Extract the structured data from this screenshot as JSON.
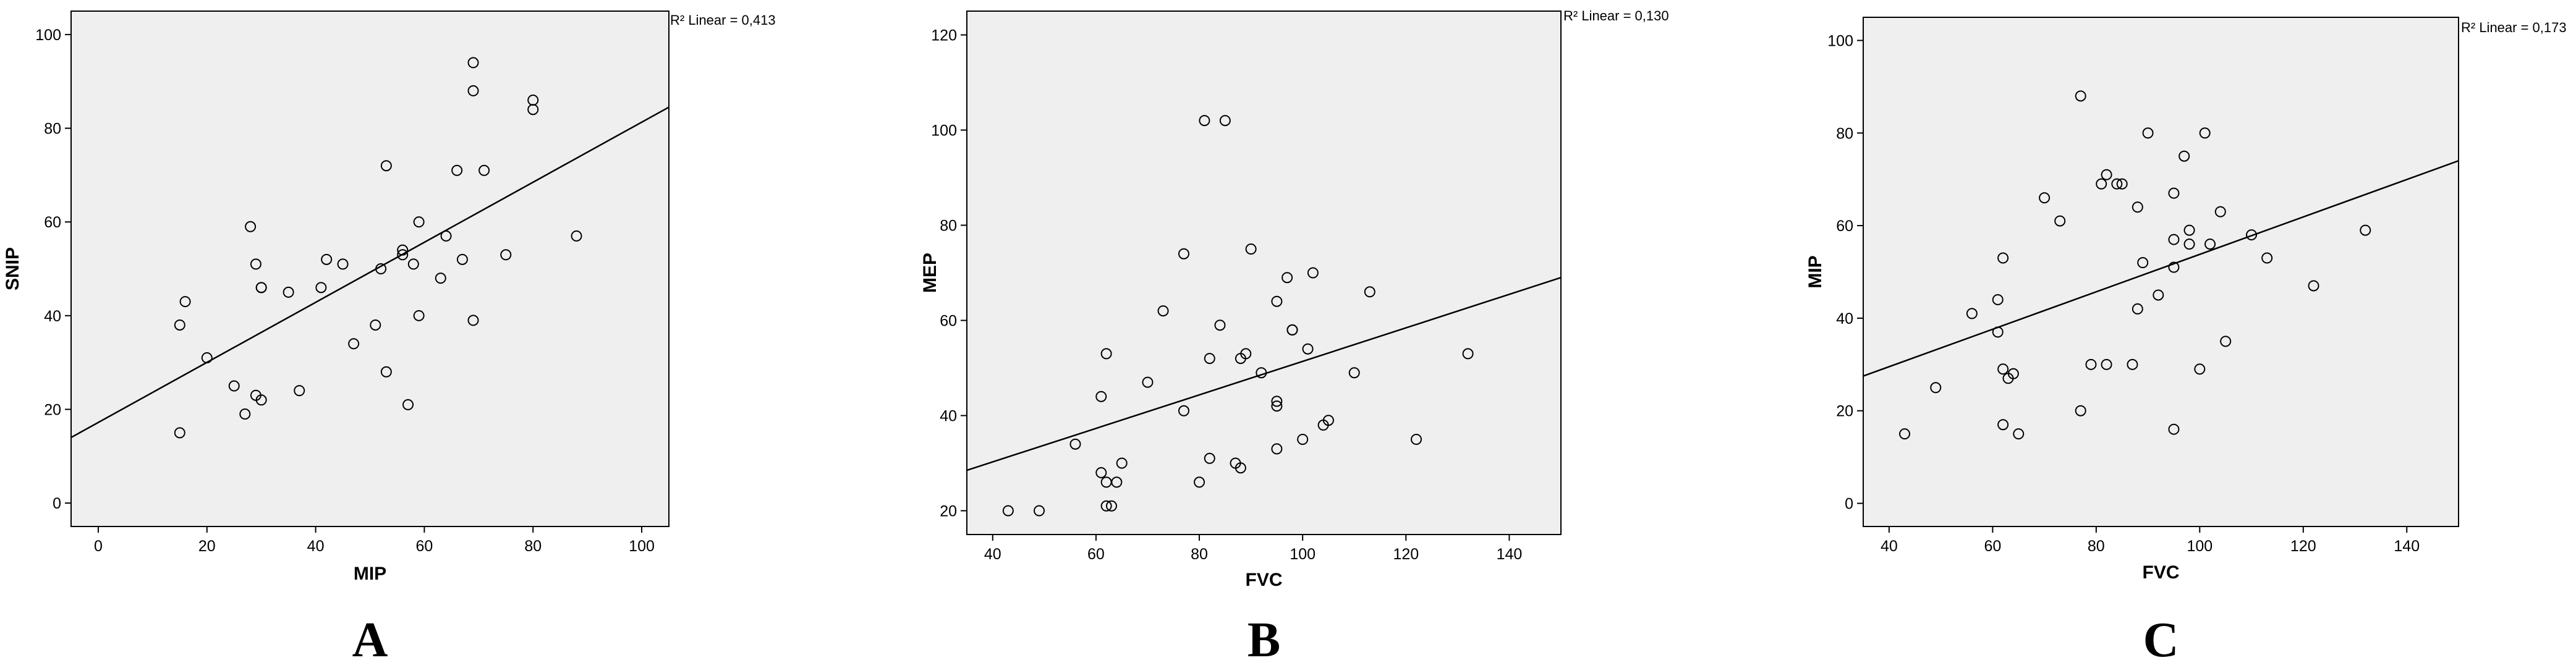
{
  "chart_data": [
    {
      "type": "scatter",
      "panel_label": "A",
      "xlabel": "MIP",
      "ylabel": "SNIP",
      "xlim": [
        -5,
        105
      ],
      "ylim": [
        -5,
        105
      ],
      "xticks": [
        0,
        20,
        40,
        60,
        80,
        100
      ],
      "yticks": [
        0,
        20,
        40,
        60,
        80,
        100
      ],
      "grid": false,
      "fit_line": {
        "type": "linear",
        "r2": 0.413,
        "label": "R² Linear = 0,413",
        "y_at_xmin": 14,
        "y_at_xmax": 84.5
      },
      "points": [
        [
          15,
          15
        ],
        [
          15,
          38
        ],
        [
          16,
          43
        ],
        [
          20,
          31
        ],
        [
          25,
          25
        ],
        [
          27,
          19
        ],
        [
          28,
          59
        ],
        [
          29,
          51
        ],
        [
          29,
          23
        ],
        [
          30,
          22
        ],
        [
          30,
          46
        ],
        [
          30,
          46
        ],
        [
          35,
          45
        ],
        [
          37,
          24
        ],
        [
          41,
          46
        ],
        [
          42,
          52
        ],
        [
          45,
          51
        ],
        [
          47,
          34
        ],
        [
          51,
          38
        ],
        [
          52,
          50
        ],
        [
          53,
          72
        ],
        [
          53,
          28
        ],
        [
          56,
          54
        ],
        [
          56,
          53
        ],
        [
          57,
          21
        ],
        [
          58,
          51
        ],
        [
          59,
          60
        ],
        [
          59,
          40
        ],
        [
          63,
          48
        ],
        [
          64,
          57
        ],
        [
          66,
          71
        ],
        [
          67,
          52
        ],
        [
          69,
          94
        ],
        [
          69,
          88
        ],
        [
          69,
          39
        ],
        [
          71,
          71
        ],
        [
          75,
          53
        ],
        [
          80,
          86
        ],
        [
          80,
          84
        ],
        [
          88,
          57
        ]
      ]
    },
    {
      "type": "scatter",
      "panel_label": "B",
      "xlabel": "FVC",
      "ylabel": "MEP",
      "xlim": [
        35,
        150
      ],
      "ylim": [
        15,
        125
      ],
      "xticks": [
        40,
        60,
        80,
        100,
        120,
        140
      ],
      "yticks": [
        20,
        40,
        60,
        80,
        100,
        120
      ],
      "grid": false,
      "fit_line": {
        "type": "linear",
        "r2": 0.13,
        "label": "R² Linear = 0,130",
        "y_at_xmin": 28.5,
        "y_at_xmax": 69
      },
      "points": [
        [
          43,
          20
        ],
        [
          49,
          20
        ],
        [
          56,
          34
        ],
        [
          61,
          28
        ],
        [
          61,
          44
        ],
        [
          62,
          26
        ],
        [
          62,
          21
        ],
        [
          62,
          53
        ],
        [
          63,
          21
        ],
        [
          64,
          26
        ],
        [
          65,
          30
        ],
        [
          70,
          47
        ],
        [
          73,
          62
        ],
        [
          77,
          41
        ],
        [
          77,
          74
        ],
        [
          80,
          26
        ],
        [
          81,
          102
        ],
        [
          82,
          31
        ],
        [
          82,
          52
        ],
        [
          84,
          59
        ],
        [
          85,
          102
        ],
        [
          87,
          30
        ],
        [
          88,
          29
        ],
        [
          88,
          52
        ],
        [
          89,
          53
        ],
        [
          90,
          75
        ],
        [
          92,
          49
        ],
        [
          95,
          64
        ],
        [
          95,
          33
        ],
        [
          95,
          43
        ],
        [
          95,
          42
        ],
        [
          97,
          69
        ],
        [
          98,
          58
        ],
        [
          98,
          58
        ],
        [
          100,
          35
        ],
        [
          101,
          54
        ],
        [
          102,
          70
        ],
        [
          104,
          38
        ],
        [
          105,
          39
        ],
        [
          110,
          49
        ],
        [
          113,
          66
        ],
        [
          122,
          35
        ],
        [
          132,
          53
        ]
      ]
    },
    {
      "type": "scatter",
      "panel_label": "C",
      "xlabel": "FVC",
      "ylabel": "MIP",
      "xlim": [
        35,
        150
      ],
      "ylim": [
        -5,
        105
      ],
      "xticks": [
        40,
        60,
        80,
        100,
        120,
        140
      ],
      "yticks": [
        0,
        20,
        40,
        60,
        80,
        100
      ],
      "grid": false,
      "fit_line": {
        "type": "linear",
        "r2": 0.173,
        "label": "R² Linear = 0,173",
        "y_at_xmin": 27.5,
        "y_at_xmax": 74
      },
      "points": [
        [
          43,
          15
        ],
        [
          49,
          25
        ],
        [
          56,
          41
        ],
        [
          61,
          44
        ],
        [
          61,
          37
        ],
        [
          62,
          53
        ],
        [
          62,
          29
        ],
        [
          62,
          17
        ],
        [
          63,
          27
        ],
        [
          64,
          28
        ],
        [
          65,
          15
        ],
        [
          70,
          66
        ],
        [
          73,
          61
        ],
        [
          77,
          20
        ],
        [
          77,
          88
        ],
        [
          79,
          30
        ],
        [
          81,
          69
        ],
        [
          82,
          71
        ],
        [
          82,
          30
        ],
        [
          84,
          69
        ],
        [
          85,
          69
        ],
        [
          87,
          30
        ],
        [
          88,
          64
        ],
        [
          88,
          42
        ],
        [
          89,
          52
        ],
        [
          90,
          80
        ],
        [
          92,
          45
        ],
        [
          95,
          67
        ],
        [
          95,
          51
        ],
        [
          95,
          16
        ],
        [
          95,
          57
        ],
        [
          97,
          75
        ],
        [
          98,
          59
        ],
        [
          98,
          56
        ],
        [
          100,
          29
        ],
        [
          101,
          80
        ],
        [
          102,
          56
        ],
        [
          104,
          63
        ],
        [
          105,
          35
        ],
        [
          110,
          58
        ],
        [
          113,
          53
        ],
        [
          122,
          47
        ],
        [
          132,
          59
        ]
      ]
    }
  ]
}
